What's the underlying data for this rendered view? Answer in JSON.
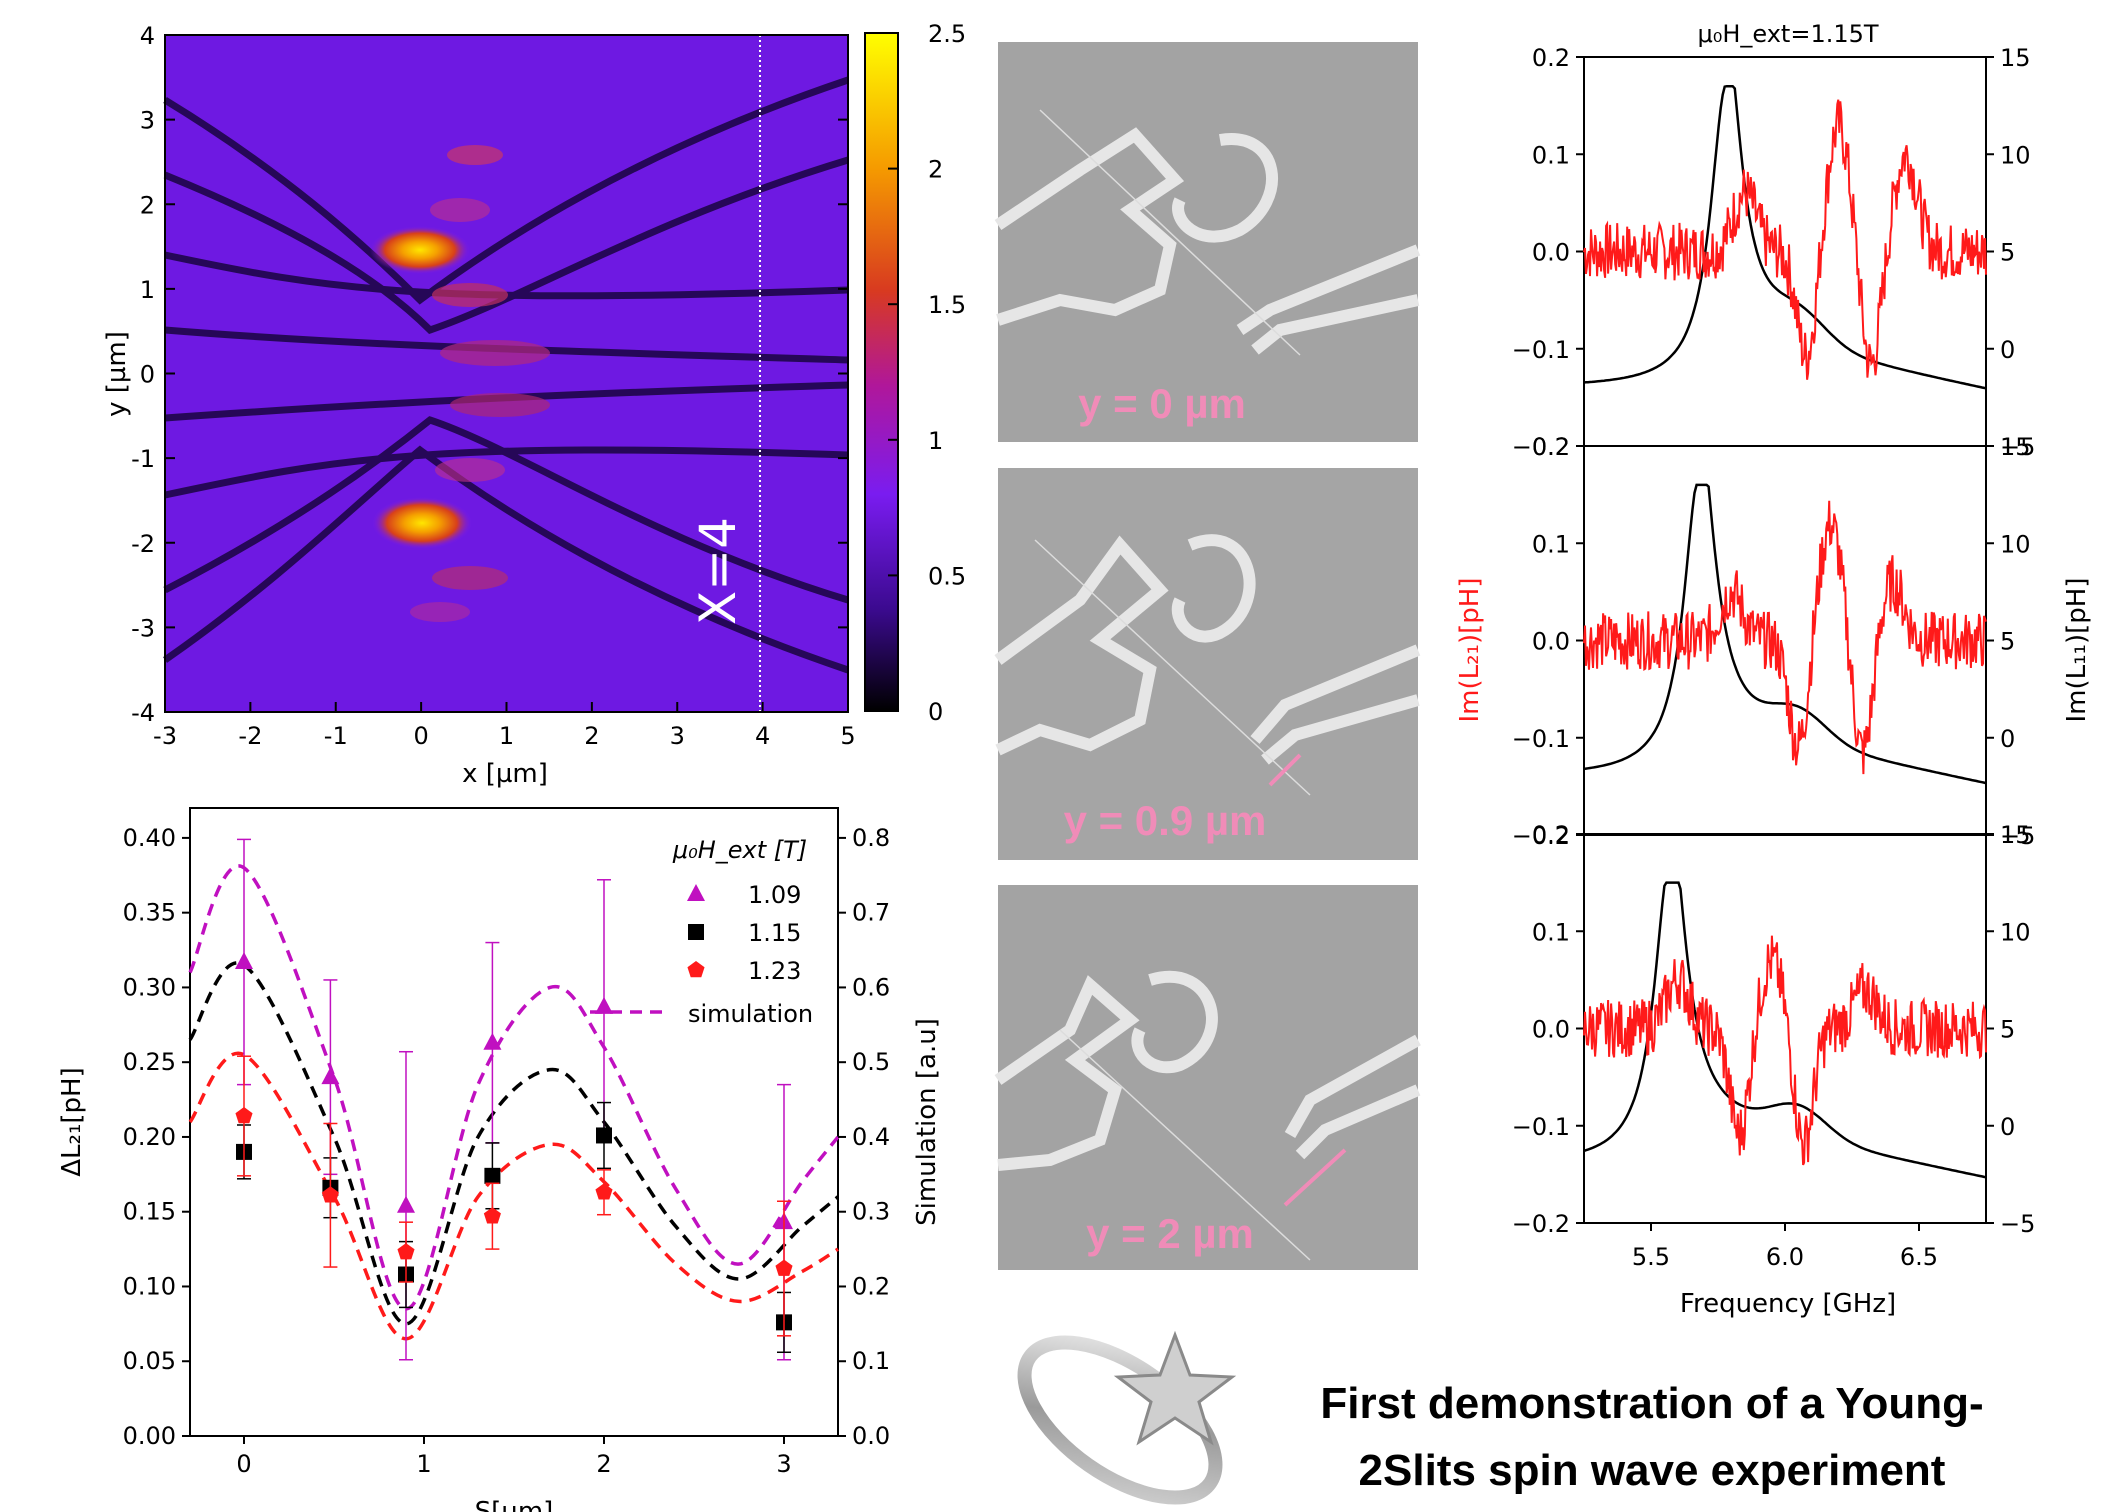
{
  "caption": {
    "line1": "First demonstration of a Young-",
    "line2": "2Slits spin wave experiment"
  },
  "sem_labels": [
    "y = 0 µm",
    "y = 0.9 µm",
    "y = 2 µm"
  ],
  "chart_data": [
    {
      "type": "heatmap",
      "xlabel": "x [µm]",
      "ylabel": "y [µm]",
      "xlim": [
        -3,
        5
      ],
      "ylim": [
        -4,
        4
      ],
      "x_ticks": [
        "-3",
        "-2",
        "-1",
        "0",
        "1",
        "2",
        "3",
        "4",
        "5"
      ],
      "y_ticks": [
        "4",
        "3",
        "2",
        "1",
        "0",
        "-1",
        "-2",
        "-3",
        "-4"
      ],
      "colorbar_ticks": [
        "2.5",
        "2",
        "1.5",
        "1",
        "0.5",
        "0"
      ],
      "colorbar_range": [
        0,
        2.5
      ],
      "colormap": [
        "#000000",
        "#3b0a8f",
        "#7a1cf0",
        "#b0179a",
        "#e0501a",
        "#f5a500",
        "#ffff00"
      ],
      "annotation": "X=4",
      "marker_line_x": 4,
      "hotspots": [
        {
          "x": 0.0,
          "y": 1.4,
          "intensity": 2.3
        },
        {
          "x": 0.0,
          "y": -1.8,
          "intensity": 2.3
        }
      ]
    },
    {
      "type": "scatter",
      "xlabel": "S[µm]",
      "ylabel": "ΔL₂₁[pH]",
      "y2label": "Simulation [a.u]",
      "xlim": [
        -0.3,
        3.3
      ],
      "ylim": [
        0.0,
        0.42
      ],
      "y2lim": [
        0.0,
        0.84
      ],
      "x_ticks": [
        0,
        1,
        2,
        3
      ],
      "y_ticks": [
        "0.00",
        "0.05",
        "0.10",
        "0.15",
        "0.20",
        "0.25",
        "0.30",
        "0.35",
        "0.40"
      ],
      "y2_ticks": [
        "0.0",
        "0.1",
        "0.2",
        "0.3",
        "0.4",
        "0.5",
        "0.6",
        "0.7",
        "0.8"
      ],
      "legend_title": "μ₀H_ext [T]",
      "legend_position": "top-right",
      "series": [
        {
          "name": "1.09",
          "color": "#c010c0",
          "marker": "triangle",
          "x": [
            0,
            0.48,
            0.9,
            1.38,
            2.0,
            3.0
          ],
          "y": [
            0.317,
            0.24,
            0.154,
            0.263,
            0.287,
            0.143
          ],
          "err": [
            0.082,
            0.065,
            0.103,
            0.067,
            0.085,
            0.092
          ]
        },
        {
          "name": "1.15",
          "color": "#000000",
          "marker": "square",
          "x": [
            0,
            0.48,
            0.9,
            1.38,
            2.0,
            3.0
          ],
          "y": [
            0.19,
            0.166,
            0.108,
            0.174,
            0.201,
            0.076
          ],
          "err": [
            0.018,
            0.02,
            0.022,
            0.022,
            0.022,
            0.02
          ]
        },
        {
          "name": "1.23",
          "color": "#ff1a1a",
          "marker": "pentagon",
          "x": [
            0,
            0.48,
            0.9,
            1.38,
            2.0,
            3.0
          ],
          "y": [
            0.214,
            0.161,
            0.123,
            0.147,
            0.163,
            0.112
          ],
          "err": [
            0.04,
            0.048,
            0.02,
            0.022,
            0.015,
            0.045
          ]
        }
      ],
      "simulation": {
        "name": "simulation",
        "x": [
          -0.3,
          0.0,
          0.5,
          0.9,
          1.3,
          1.7,
          2.0,
          2.4,
          2.75,
          3.1,
          3.3
        ],
        "curves": [
          {
            "color": "#c010c0",
            "y2": [
              0.62,
              0.76,
              0.48,
              0.17,
              0.47,
              0.6,
              0.52,
              0.33,
              0.23,
              0.34,
              0.4
            ]
          },
          {
            "color": "#000000",
            "y2": [
              0.53,
              0.63,
              0.4,
              0.15,
              0.4,
              0.49,
              0.42,
              0.28,
              0.21,
              0.28,
              0.32
            ]
          },
          {
            "color": "#ff1a1a",
            "y2": [
              0.42,
              0.51,
              0.32,
              0.13,
              0.32,
              0.39,
              0.34,
              0.23,
              0.18,
              0.22,
              0.25
            ]
          }
        ]
      }
    },
    {
      "type": "line",
      "title": "μ₀H_ext=1.15T",
      "xlabel": "Frequency [GHz]",
      "ylabel": "Im(L₂₁)[pH]",
      "y2label": "Im(L₁₁)[pH]",
      "xlim": [
        5.25,
        6.75
      ],
      "x_ticks": [
        "5.5",
        "6.0",
        "6.5"
      ],
      "ylim": [
        -0.2,
        0.2
      ],
      "y2lim": [
        -5,
        15
      ],
      "y_ticks": [
        "0.2",
        "0.1",
        "0.0",
        "−0.1",
        "−0.2"
      ],
      "y2_ticks": [
        "15",
        "10",
        "5",
        "0",
        "−5"
      ],
      "panels": [
        {
          "black_peak": 5.78,
          "black_peak_y2": 13.5,
          "red_osc": [
            {
              "f": 5.85,
              "a": 0.06
            },
            {
              "f": 6.2,
              "a": 0.13
            },
            {
              "f": 6.45,
              "a": 0.1
            }
          ]
        },
        {
          "black_peak": 5.68,
          "black_peak_y2": 13.0,
          "red_osc": [
            {
              "f": 5.8,
              "a": 0.05
            },
            {
              "f": 6.17,
              "a": 0.12
            },
            {
              "f": 6.4,
              "a": 0.06
            }
          ]
        },
        {
          "black_peak": 5.57,
          "black_peak_y2": 12.5,
          "red_osc": [
            {
              "f": 5.6,
              "a": 0.05
            },
            {
              "f": 5.95,
              "a": 0.07
            },
            {
              "f": 6.3,
              "a": 0.04
            }
          ]
        }
      ]
    }
  ]
}
